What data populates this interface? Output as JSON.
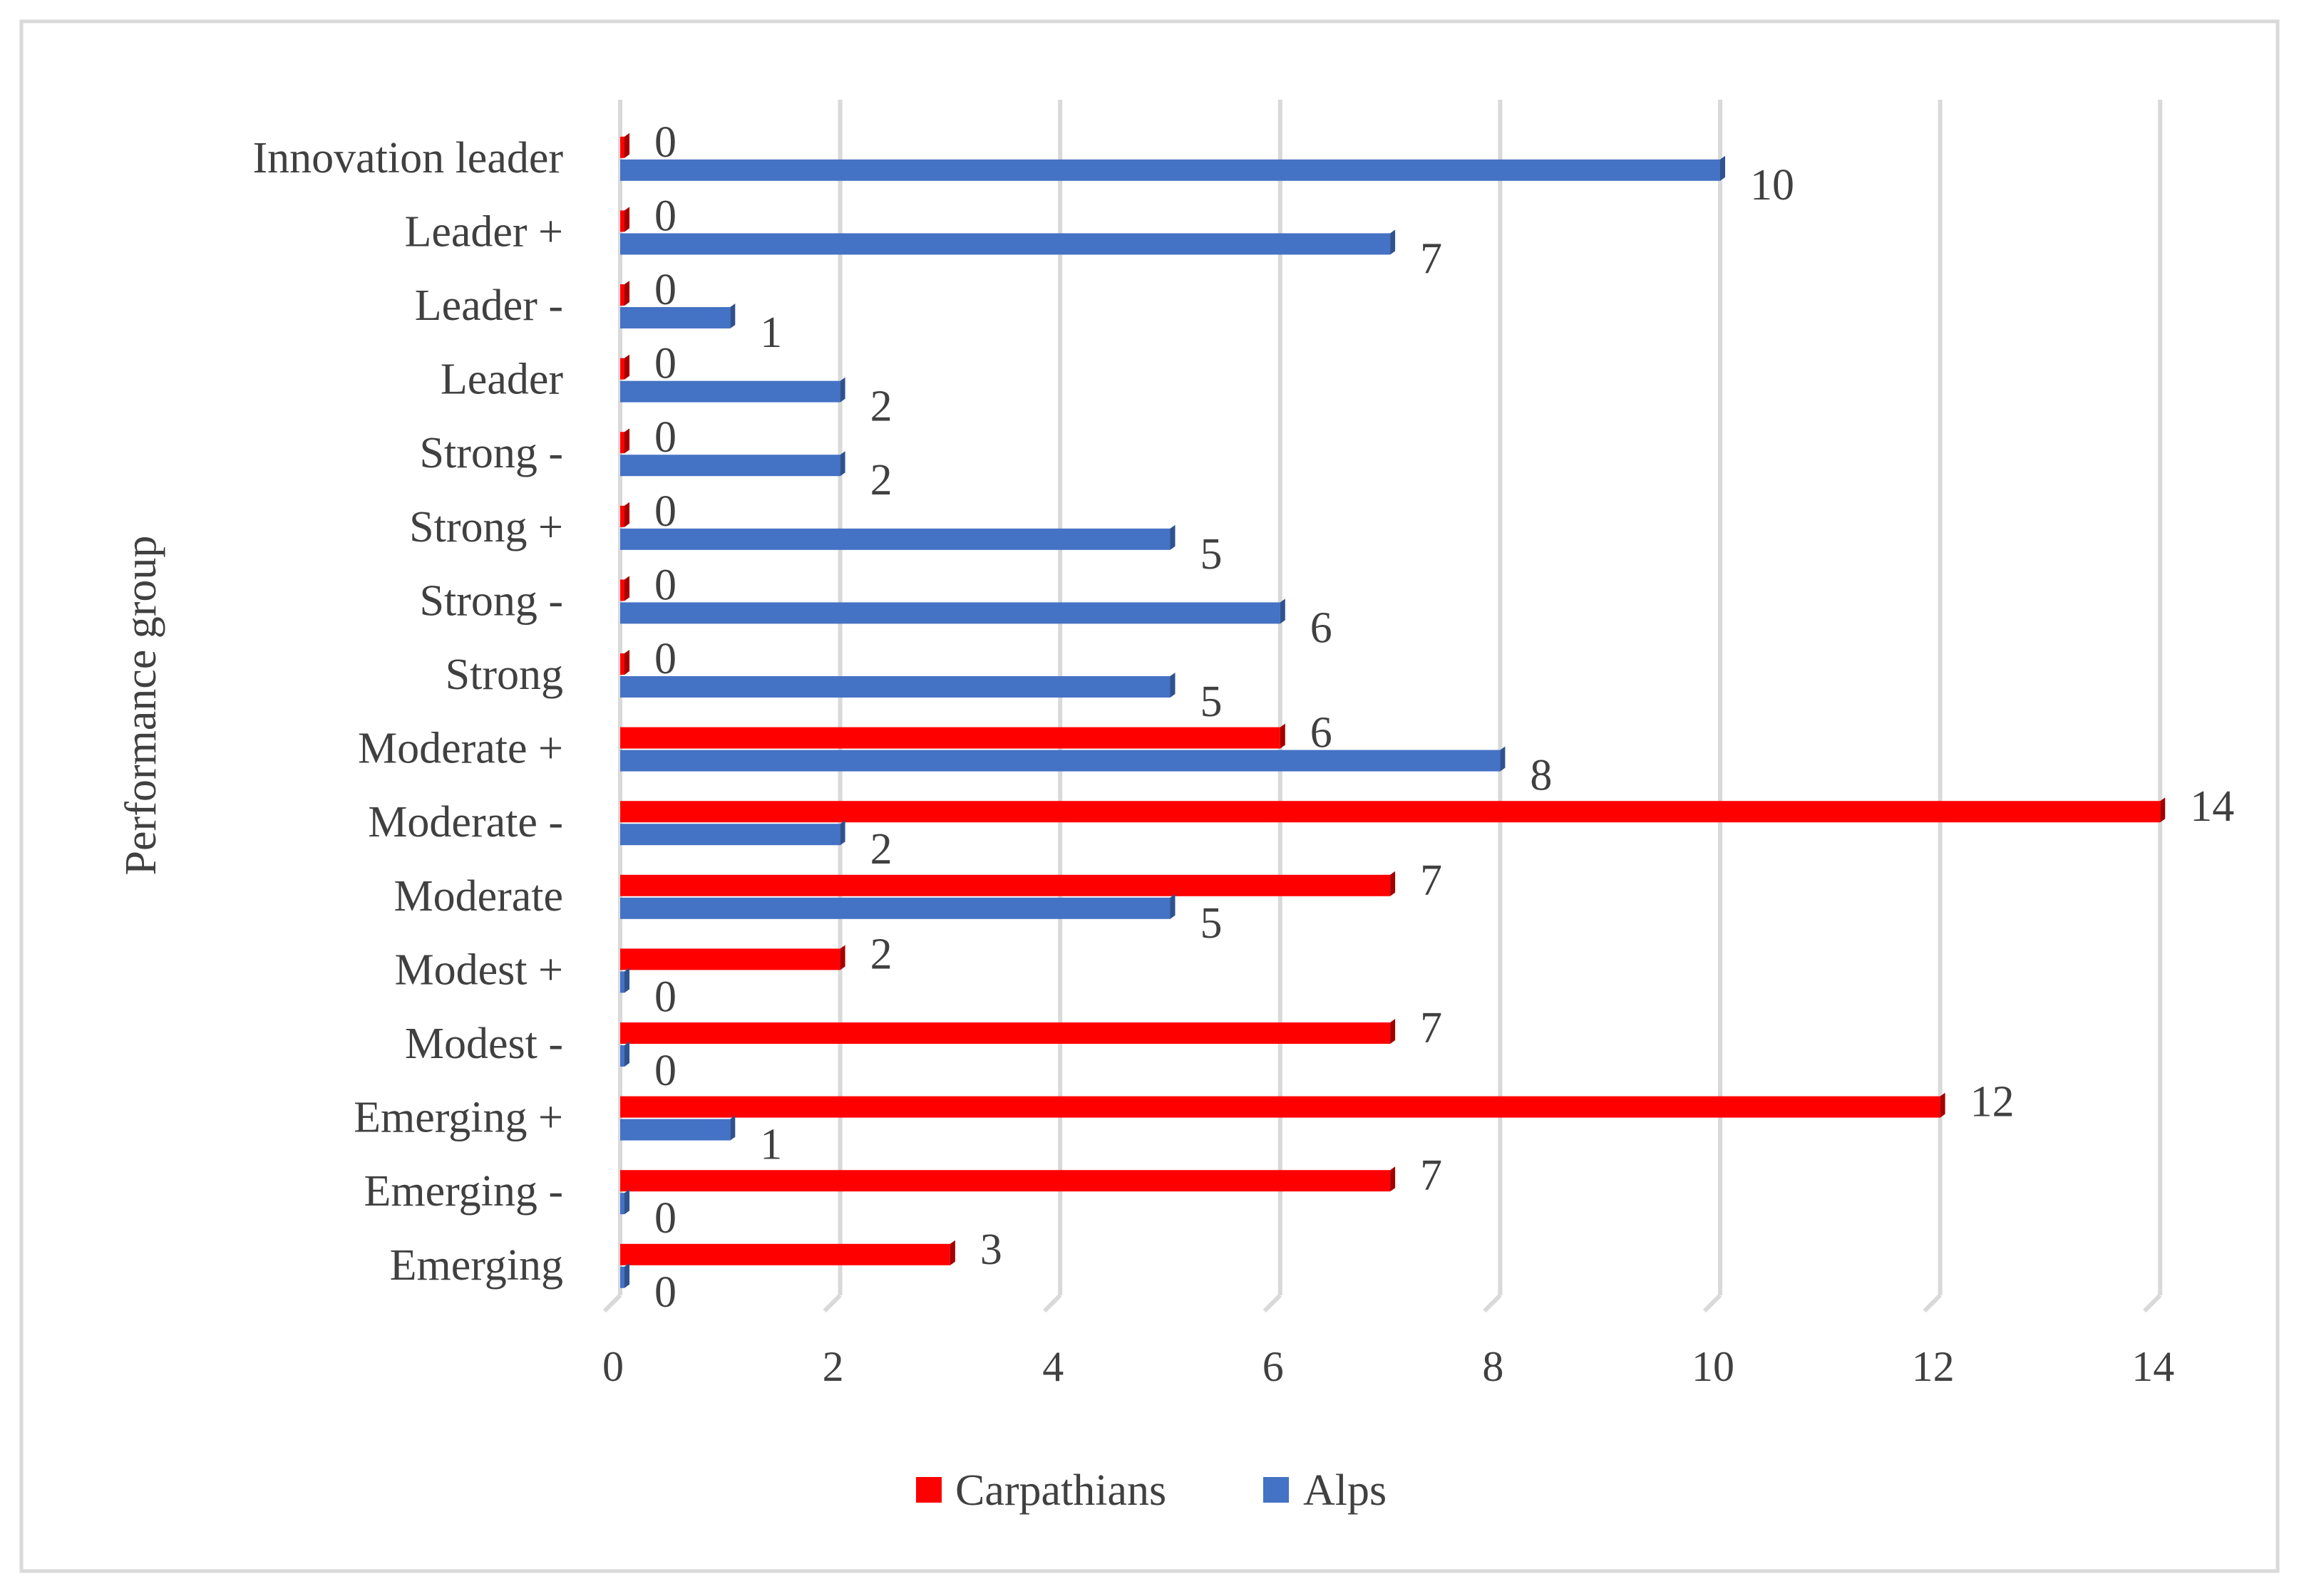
{
  "chart_data": {
    "type": "bar",
    "orientation": "horizontal",
    "title": "",
    "xlabel": "",
    "ylabel": "Performance group",
    "xlim": [
      0,
      14
    ],
    "xticks": [
      0,
      2,
      4,
      6,
      8,
      10,
      12,
      14
    ],
    "grid": true,
    "legend_position": "bottom",
    "categories": [
      "Innovation leader",
      "Leader +",
      "Leader -",
      "Leader",
      "Strong -",
      "Strong  +",
      "Strong  -",
      "Strong",
      "Moderate  +",
      "Moderate  -",
      "Moderate",
      "Modest +",
      "Modest -",
      "Emerging  +",
      "Emerging  -",
      "Emerging"
    ],
    "series": [
      {
        "name": "Carpathians",
        "color": "#ff0000",
        "values": [
          0,
          0,
          0,
          0,
          0,
          0,
          0,
          0,
          6,
          14,
          7,
          2,
          7,
          12,
          7,
          3
        ]
      },
      {
        "name": "Alps",
        "color": "#4472c4",
        "values": [
          10,
          7,
          1,
          2,
          2,
          5,
          6,
          5,
          8,
          2,
          5,
          0,
          0,
          1,
          0,
          0
        ]
      }
    ]
  }
}
